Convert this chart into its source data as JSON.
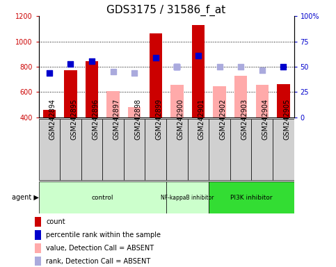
{
  "title": "GDS3175 / 31586_f_at",
  "samples": [
    "GSM242894",
    "GSM242895",
    "GSM242896",
    "GSM242897",
    "GSM242898",
    "GSM242899",
    "GSM242900",
    "GSM242901",
    "GSM242902",
    "GSM242903",
    "GSM242904",
    "GSM242905"
  ],
  "red_bars": [
    460,
    770,
    845,
    null,
    null,
    1065,
    null,
    1130,
    null,
    null,
    null,
    665
  ],
  "pink_bars": [
    null,
    null,
    null,
    610,
    480,
    null,
    655,
    null,
    645,
    730,
    655,
    null
  ],
  "blue_squares": [
    750,
    820,
    845,
    null,
    null,
    870,
    800,
    885,
    null,
    null,
    null,
    800
  ],
  "lavender_squares": [
    null,
    null,
    null,
    760,
    750,
    null,
    800,
    null,
    800,
    800,
    775,
    null
  ],
  "ylim_left": [
    400,
    1200
  ],
  "ylim_right": [
    0,
    100
  ],
  "left_yticks": [
    400,
    600,
    800,
    1000,
    1200
  ],
  "right_yticks": [
    0,
    25,
    50,
    75,
    100
  ],
  "groups": [
    {
      "label": "control",
      "start": 0,
      "end": 5,
      "color": "#ccffcc"
    },
    {
      "label": "NF-kappaB inhibitor",
      "start": 6,
      "end": 7,
      "color": "#ccffcc"
    },
    {
      "label": "PI3K inhibitor",
      "start": 8,
      "end": 11,
      "color": "#33dd33"
    }
  ],
  "bar_width": 0.6,
  "red_color": "#cc0000",
  "pink_color": "#ffaaaa",
  "blue_color": "#0000cc",
  "lavender_color": "#aaaadd",
  "bg_color": "#ffffff",
  "grid_lines": [
    600,
    800,
    1000
  ],
  "legend_labels": [
    "count",
    "percentile rank within the sample",
    "value, Detection Call = ABSENT",
    "rank, Detection Call = ABSENT"
  ],
  "legend_colors": [
    "#cc0000",
    "#0000cc",
    "#ffaaaa",
    "#aaaadd"
  ],
  "title_fontsize": 11,
  "tick_fontsize": 7,
  "xticklabel_fontsize": 7
}
